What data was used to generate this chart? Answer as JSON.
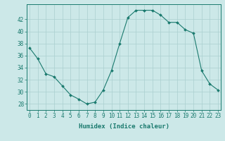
{
  "x": [
    0,
    1,
    2,
    3,
    4,
    5,
    6,
    7,
    8,
    9,
    10,
    11,
    12,
    13,
    14,
    15,
    16,
    17,
    18,
    19,
    20,
    21,
    22,
    23
  ],
  "y": [
    37.3,
    35.5,
    33.0,
    32.5,
    31.0,
    29.5,
    28.8,
    28.0,
    28.3,
    30.3,
    33.5,
    38.0,
    42.3,
    43.5,
    43.5,
    43.5,
    42.7,
    41.5,
    41.5,
    40.3,
    39.7,
    33.5,
    31.3,
    30.3
  ],
  "xlabel": "Humidex (Indice chaleur)",
  "xtick_labels": [
    "0",
    "1",
    "2",
    "3",
    "4",
    "5",
    "6",
    "7",
    "8",
    "9",
    "10",
    "11",
    "12",
    "13",
    "14",
    "15",
    "16",
    "17",
    "18",
    "19",
    "20",
    "21",
    "22",
    "23"
  ],
  "ytick_labels": [
    "28",
    "30",
    "32",
    "34",
    "36",
    "38",
    "40",
    "42"
  ],
  "yticks": [
    28,
    30,
    32,
    34,
    36,
    38,
    40,
    42
  ],
  "ylim": [
    27.0,
    44.5
  ],
  "xlim": [
    -0.3,
    23.3
  ],
  "line_color": "#1a7a6e",
  "marker_color": "#1a7a6e",
  "bg_color": "#cce8e8",
  "grid_color": "#aacfcf",
  "tick_label_color": "#1a7a6e",
  "label_color": "#1a7a6e",
  "spine_color": "#1a7a6e",
  "font_size_ticks": 5.5,
  "font_size_label": 6.5
}
